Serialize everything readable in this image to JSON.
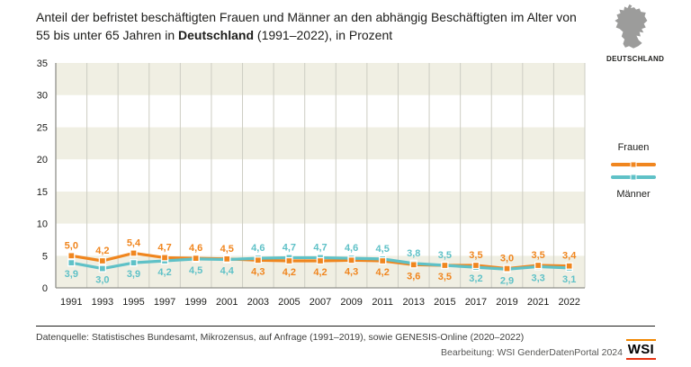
{
  "title": {
    "text_before_bold": "Anteil der befristet beschäftigten Frauen und Männer an den abhängig Beschäftigten im Alter von\n55 bis unter 65 Jahren in ",
    "bold_text": "Deutschland",
    "text_after_bold": " (1991–2022), in Prozent"
  },
  "region_badge": {
    "label": "DEUTSCHLAND",
    "map_color": "#9c9c9b"
  },
  "legend": {
    "items": [
      {
        "label": "Frauen",
        "color": "#f0861f"
      },
      {
        "label": "Männer",
        "color": "#5fc1c7"
      }
    ]
  },
  "chart_data": {
    "type": "line",
    "title": "Anteil der befristet beschäftigten Frauen und Männer an den abhängig Beschäftigten im Alter von 55 bis unter 65 Jahren in Deutschland (1991–2022), in Prozent",
    "categories": [
      "1991",
      "1993",
      "1995",
      "1997",
      "1999",
      "2001",
      "2003",
      "2005",
      "2007",
      "2009",
      "2011",
      "2013",
      "2015",
      "2017",
      "2019",
      "2021",
      "2022"
    ],
    "series": [
      {
        "name": "Frauen",
        "color": "#f0861f",
        "values": [
          5.0,
          4.2,
          5.4,
          4.7,
          4.6,
          4.5,
          4.3,
          4.2,
          4.2,
          4.3,
          4.2,
          3.6,
          3.5,
          3.5,
          3.0,
          3.5,
          3.4
        ]
      },
      {
        "name": "Männer",
        "color": "#5fc1c7",
        "values": [
          3.9,
          3.0,
          3.9,
          4.2,
          4.5,
          4.4,
          4.6,
          4.7,
          4.7,
          4.6,
          4.5,
          3.8,
          3.5,
          3.2,
          2.9,
          3.3,
          3.1
        ]
      }
    ],
    "xlabel": "",
    "ylabel": "",
    "ylim": [
      0,
      35
    ],
    "ytick_step": 5,
    "grid": "vertical",
    "band_colors": [
      "#f0efe3",
      "#ffffff"
    ],
    "gridline_color": "#cdcdc3",
    "axis_color": "#90908a",
    "legend_position": "right",
    "value_label_decimal_separator": ","
  },
  "footer": {
    "source": "Datenquelle: Statistisches Bundesamt, Mikrozensus, auf Anfrage (1991–2019), sowie GENESIS-Online (2020–2022)",
    "credit": "Bearbeitung: WSI GenderDatenPortal 2024",
    "logo_text": "WSI"
  }
}
